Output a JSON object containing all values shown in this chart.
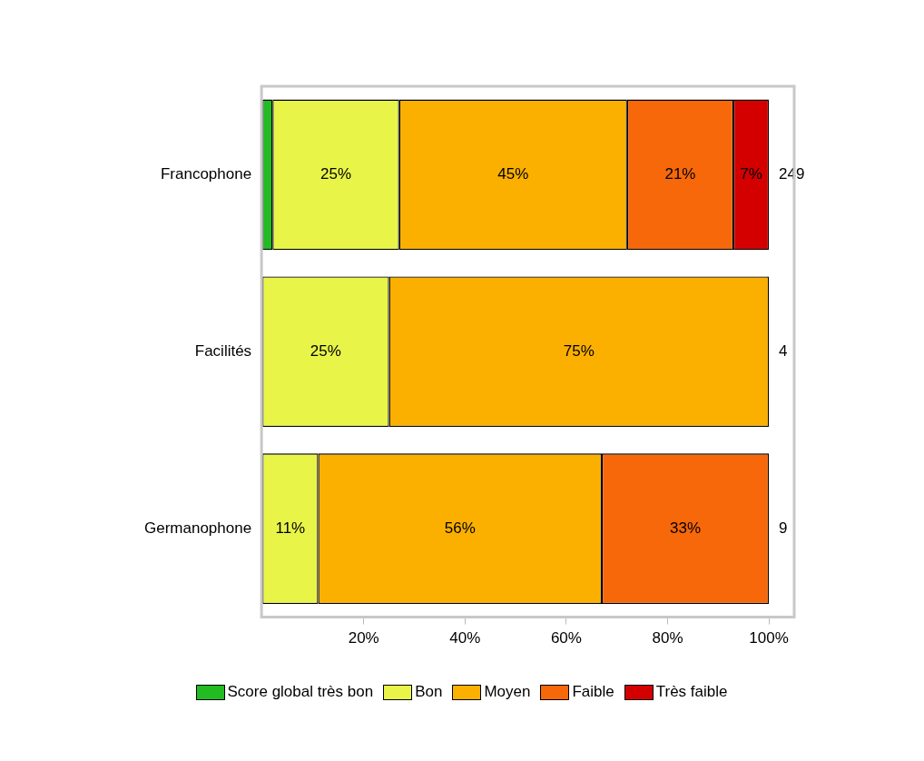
{
  "chart_data": {
    "type": "bar",
    "orientation": "horizontal",
    "stacked": true,
    "categories": [
      "Francophone",
      "Facilités",
      "Germanophone"
    ],
    "series": [
      {
        "name": "Score global très bon",
        "color": "#22bb22",
        "values": [
          2,
          null,
          null
        ],
        "value_labels": [
          null,
          null,
          null
        ]
      },
      {
        "name": "Bon",
        "color": "#e8f548",
        "values": [
          25,
          25,
          11
        ],
        "value_labels": [
          "25%",
          "25%",
          "11%"
        ]
      },
      {
        "name": "Moyen",
        "color": "#fbb000",
        "values": [
          45,
          75,
          56
        ],
        "value_labels": [
          "45%",
          "75%",
          "56%"
        ]
      },
      {
        "name": "Faible",
        "color": "#f6680a",
        "values": [
          21,
          null,
          33
        ],
        "value_labels": [
          "21%",
          null,
          "33%"
        ]
      },
      {
        "name": "Très faible",
        "color": "#d40000",
        "values": [
          7,
          null,
          null
        ],
        "value_labels": [
          "7%",
          null,
          null
        ]
      }
    ],
    "annotations": [
      "249",
      "4",
      "9"
    ],
    "xlim": [
      0,
      105
    ],
    "xticks": [
      {
        "value": 20,
        "label": "20%"
      },
      {
        "value": 40,
        "label": "40%"
      },
      {
        "value": 60,
        "label": "60%"
      },
      {
        "value": 80,
        "label": "80%"
      },
      {
        "value": 100,
        "label": "100%"
      }
    ],
    "grid": false,
    "legend": "bottom"
  }
}
